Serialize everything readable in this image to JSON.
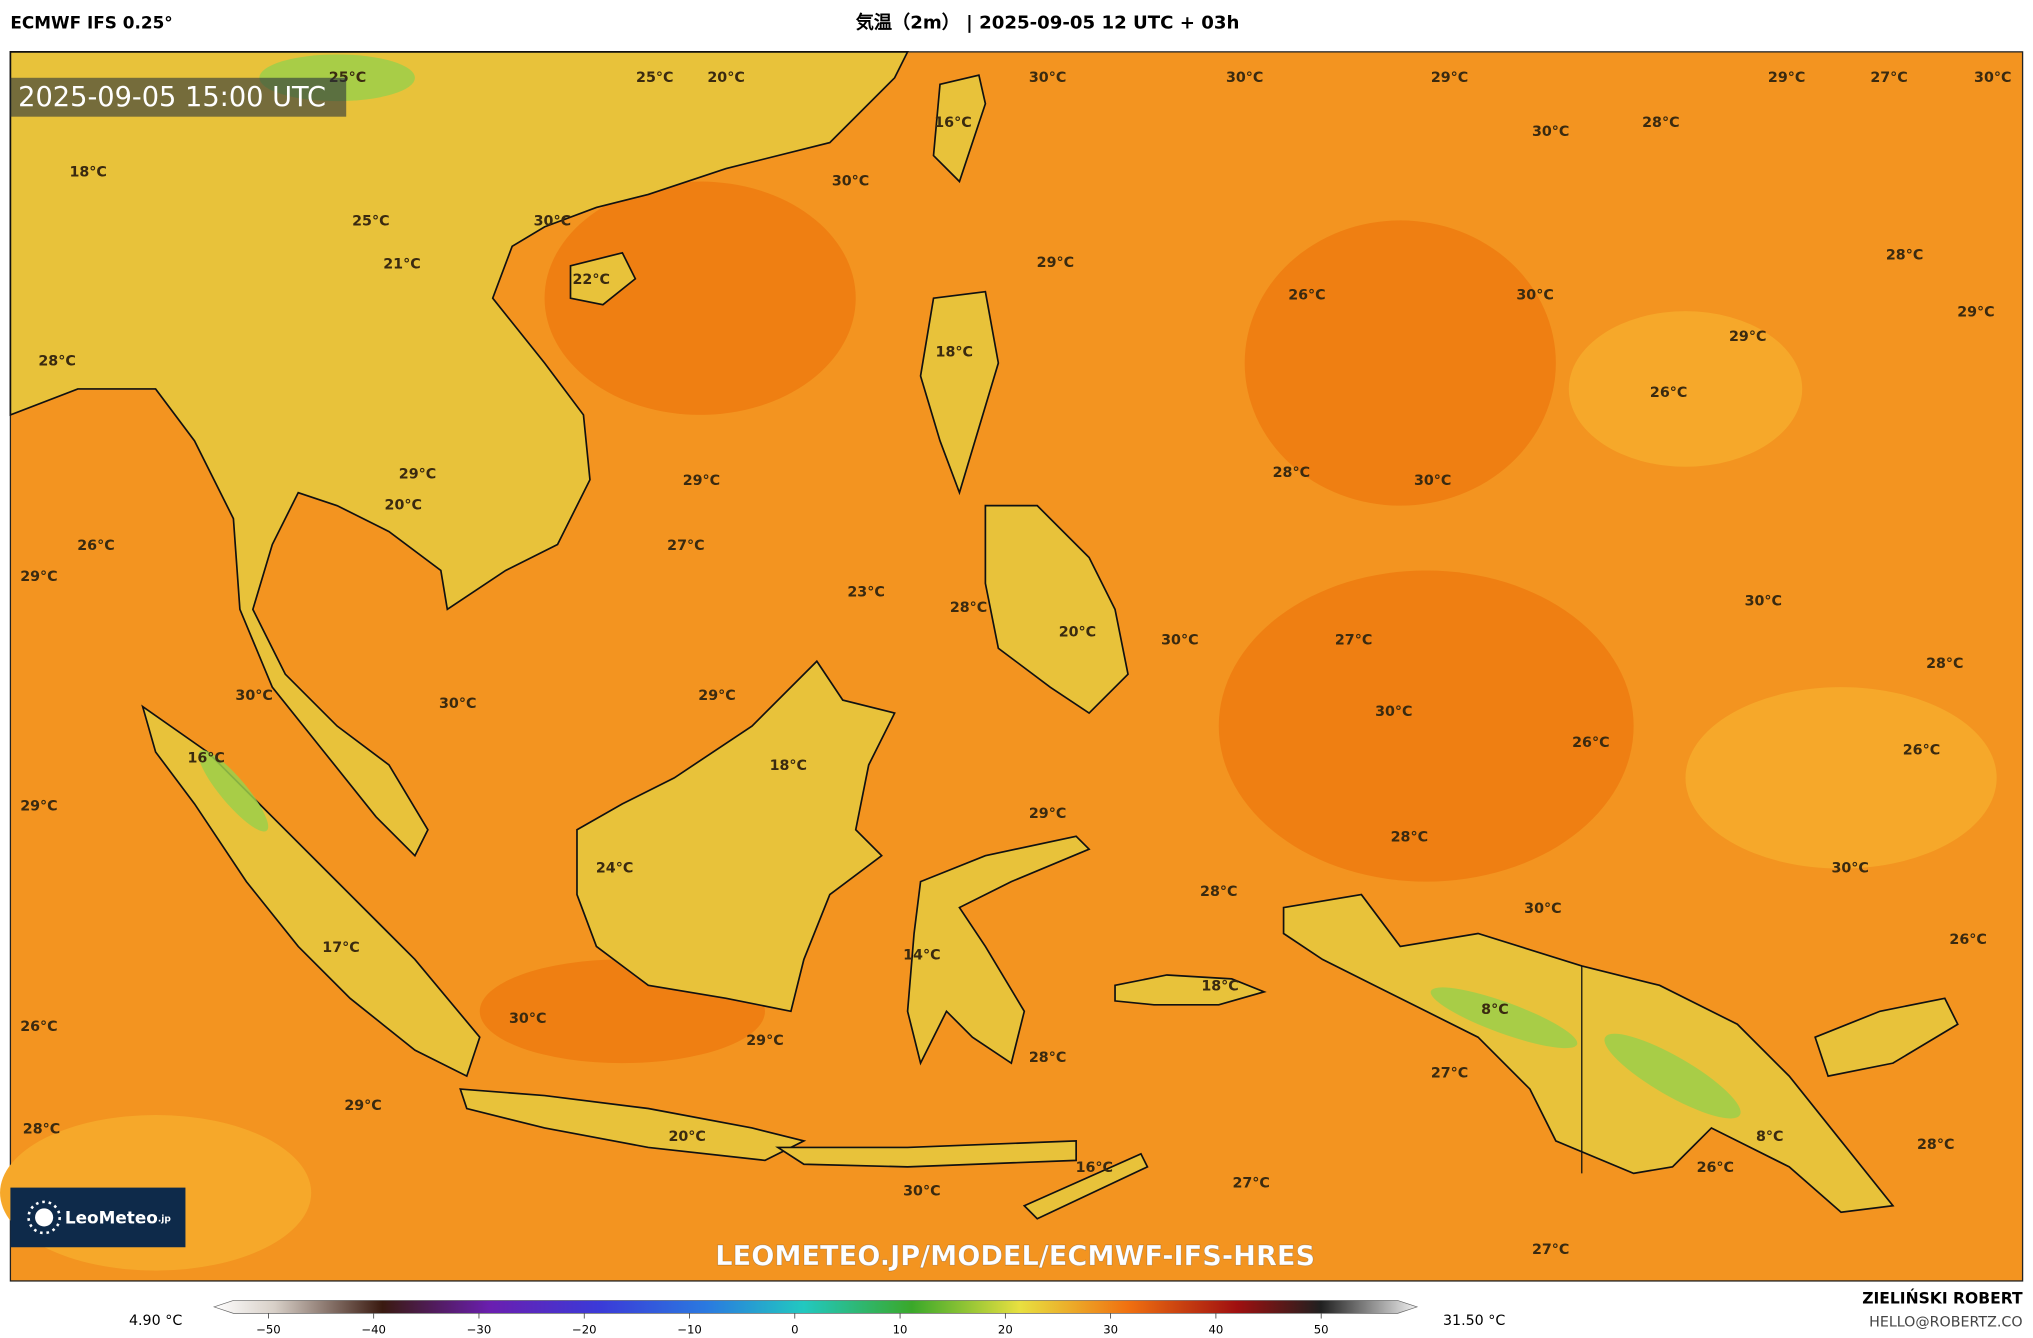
{
  "header": {
    "left": "ECMWF IFS 0.25°",
    "title": "気温（2m） | 2025-09-05 12 UTC + 03h"
  },
  "map": {
    "timestamp": "2025-09-05 15:00 UTC",
    "watermark": "LEOMETEO.JP/MODEL/ECMWF-IFS-HRES",
    "labels": [
      "25°C",
      "25°C",
      "20°C",
      "30°C",
      "30°C",
      "29°C",
      "29°C",
      "27°C",
      "30°C",
      "16°C",
      "30°C",
      "28°C",
      "18°C",
      "30°C",
      "25°C",
      "30°C",
      "21°C",
      "22°C",
      "29°C",
      "28°C",
      "26°C",
      "30°C",
      "29°C",
      "29°C",
      "18°C",
      "28°C",
      "26°C",
      "28°C",
      "30°C",
      "29°C",
      "29°C",
      "20°C",
      "26°C",
      "27°C",
      "29°C",
      "23°C",
      "28°C",
      "30°C",
      "30°C",
      "27°C",
      "20°C",
      "28°C",
      "30°C",
      "30°C",
      "29°C",
      "30°C",
      "26°C",
      "26°C",
      "16°C",
      "18°C",
      "29°C",
      "29°C",
      "28°C",
      "24°C",
      "30°C",
      "28°C",
      "30°C",
      "26°C",
      "17°C",
      "14°C",
      "18°C",
      "8°C",
      "26°C",
      "30°C",
      "29°C",
      "28°C",
      "27°C",
      "29°C",
      "28°C",
      "20°C",
      "8°C",
      "28°C",
      "16°C",
      "26°C",
      "30°C",
      "27°C",
      "27°C"
    ]
  },
  "logo": {
    "text": "LeoMeteo",
    "suffix": ".jp"
  },
  "legend": {
    "min": "4.90 °C",
    "max": "31.50 °C",
    "ticks": [
      "−50",
      "−40",
      "−30",
      "−20",
      "−10",
      "0",
      "10",
      "20",
      "30",
      "40",
      "50"
    ]
  },
  "author": {
    "name": "ZIELIŃSKI ROBERT",
    "email": "HELLO@ROBERTZ.CO"
  }
}
